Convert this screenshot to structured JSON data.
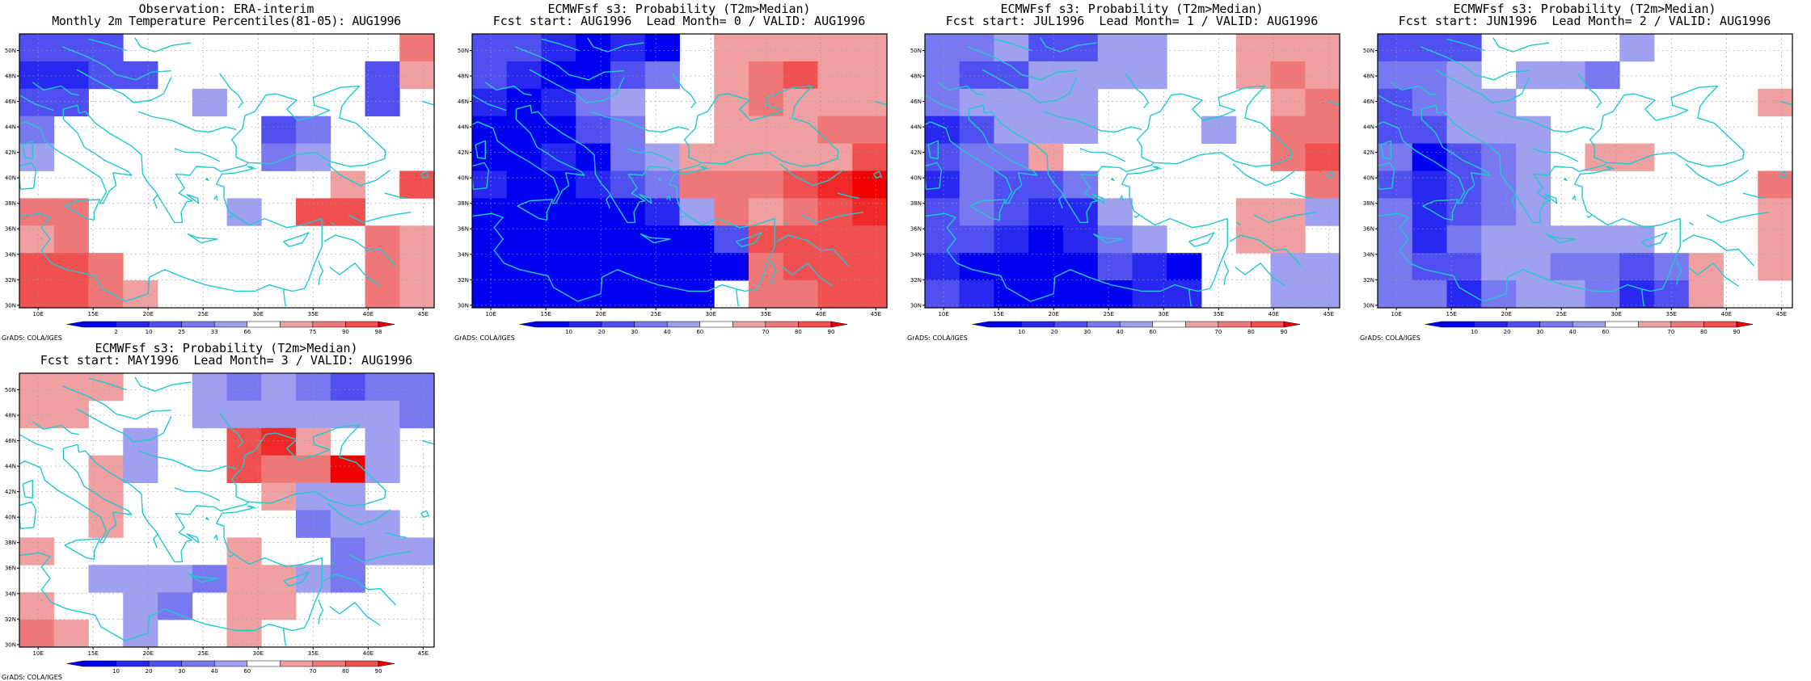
{
  "colors": {
    "coastline": "#22c8d0",
    "grid_line": "#9a9a9a",
    "frame": "#000000",
    "blue_ramp": [
      "#0000f0",
      "#2828f0",
      "#5050f0",
      "#7878f0",
      "#a0a0f0"
    ],
    "red_ramp": [
      "#f0a0a0",
      "#f07878",
      "#f05050",
      "#f02828",
      "#f00000"
    ]
  },
  "map": {
    "lon_ticks": [
      "10E",
      "15E",
      "20E",
      "25E",
      "30E",
      "35E",
      "40E",
      "45E"
    ],
    "lat_ticks": [
      "30N",
      "32N",
      "34N",
      "36N",
      "38N",
      "40N",
      "42N",
      "44N",
      "46N",
      "48N",
      "50N"
    ],
    "grid_columns": 12,
    "grid_rows": 10
  },
  "panels": [
    {
      "title_line1": "Observation: ERA-interim",
      "title_line2": "Monthly 2m Temperature Percentiles(81-05): AUG1996",
      "colorbar_labels": [
        "2",
        "10",
        "25",
        "33",
        "66",
        "75",
        "90",
        "98"
      ],
      "credit": "GrADS: COLA/IGES",
      "grid_levels": [
        [
          -3,
          -3,
          -3,
          0,
          0,
          0,
          0,
          0,
          0,
          0,
          0,
          2
        ],
        [
          -4,
          -4,
          -3,
          -3,
          0,
          0,
          0,
          0,
          0,
          0,
          -3,
          1
        ],
        [
          -3,
          -3,
          0,
          0,
          0,
          -1,
          0,
          0,
          0,
          0,
          -3,
          0
        ],
        [
          -2,
          0,
          0,
          0,
          0,
          0,
          0,
          -3,
          -2,
          0,
          0,
          0
        ],
        [
          -1,
          0,
          0,
          0,
          0,
          0,
          0,
          -2,
          -1,
          0,
          0,
          0
        ],
        [
          0,
          0,
          0,
          0,
          0,
          0,
          0,
          0,
          0,
          1,
          0,
          3
        ],
        [
          2,
          2,
          0,
          0,
          0,
          0,
          -1,
          0,
          3,
          3,
          0,
          0
        ],
        [
          1,
          2,
          0,
          0,
          0,
          0,
          0,
          0,
          0,
          0,
          2,
          1
        ],
        [
          3,
          3,
          2,
          0,
          0,
          0,
          0,
          0,
          0,
          0,
          2,
          1
        ],
        [
          3,
          3,
          2,
          1,
          0,
          0,
          0,
          0,
          0,
          0,
          2,
          1
        ]
      ]
    },
    {
      "title_line1": "ECMWFsf s3: Probability (T2m>Median)",
      "title_line2": "Fcst start: AUG1996  Lead Month= 0 / VALID: AUG1996",
      "colorbar_labels": [
        "10",
        "20",
        "30",
        "40",
        "60",
        "70",
        "80",
        "90"
      ],
      "credit": "GrADS: COLA/IGES",
      "grid_levels": [
        [
          -3,
          -3,
          -4,
          -5,
          -4,
          -5,
          0,
          1,
          1,
          1,
          1,
          1
        ],
        [
          -3,
          -4,
          -5,
          -5,
          -3,
          -2,
          0,
          1,
          2,
          3,
          1,
          1
        ],
        [
          -4,
          -5,
          -4,
          -2,
          -1,
          0,
          0,
          1,
          2,
          1,
          1,
          1
        ],
        [
          -5,
          -5,
          -5,
          -3,
          -2,
          0,
          0,
          1,
          1,
          1,
          2,
          2
        ],
        [
          -5,
          -5,
          -4,
          -5,
          -2,
          -1,
          1,
          1,
          1,
          1,
          1,
          3
        ],
        [
          -4,
          -5,
          -5,
          -4,
          -3,
          -2,
          2,
          2,
          2,
          3,
          4,
          5
        ],
        [
          -5,
          -5,
          -5,
          -5,
          -5,
          -4,
          -1,
          2,
          1,
          2,
          3,
          4
        ],
        [
          -5,
          -5,
          -5,
          -5,
          -5,
          -5,
          -5,
          -3,
          3,
          3,
          3,
          3
        ],
        [
          -5,
          -5,
          -5,
          -5,
          -5,
          -5,
          -5,
          -5,
          2,
          3,
          3,
          3
        ],
        [
          -5,
          -5,
          -5,
          -5,
          -5,
          -5,
          -5,
          0,
          2,
          2,
          3,
          3
        ]
      ]
    },
    {
      "title_line1": "ECMWFsf s3: Probability (T2m>Median)",
      "title_line2": "Fcst start: JUL1996  Lead Month= 1 / VALID: AUG1996",
      "colorbar_labels": [
        "10",
        "20",
        "30",
        "40",
        "60",
        "70",
        "80",
        "90"
      ],
      "credit": "GrADS: COLA/IGES",
      "grid_levels": [
        [
          -2,
          -2,
          -1,
          -3,
          -3,
          -1,
          -1,
          0,
          0,
          1,
          1,
          1
        ],
        [
          -2,
          -3,
          -3,
          -1,
          -1,
          -1,
          -1,
          0,
          0,
          1,
          2,
          1
        ],
        [
          -2,
          -1,
          -1,
          -1,
          -1,
          0,
          0,
          0,
          0,
          0,
          1,
          2
        ],
        [
          -4,
          -3,
          -1,
          -1,
          -1,
          0,
          0,
          0,
          -1,
          0,
          2,
          2
        ],
        [
          -3,
          -2,
          -2,
          1,
          0,
          0,
          0,
          0,
          0,
          0,
          2,
          3
        ],
        [
          -4,
          -2,
          -3,
          -3,
          -2,
          0,
          0,
          0,
          0,
          0,
          0,
          2
        ],
        [
          -3,
          -2,
          -3,
          -4,
          -4,
          -1,
          0,
          0,
          0,
          1,
          1,
          -1
        ],
        [
          -3,
          -3,
          -4,
          -5,
          -4,
          -2,
          -1,
          0,
          0,
          1,
          1,
          0
        ],
        [
          -4,
          -5,
          -5,
          -5,
          -5,
          -3,
          -4,
          -5,
          0,
          0,
          -1,
          -1
        ],
        [
          -3,
          -4,
          -5,
          -5,
          -5,
          -5,
          -4,
          -4,
          0,
          0,
          -1,
          -1
        ]
      ]
    },
    {
      "title_line1": "ECMWFsf s3: Probability (T2m>Median)",
      "title_line2": "Fcst start: JUN1996  Lead Month= 2 / VALID: AUG1996",
      "colorbar_labels": [
        "10",
        "20",
        "30",
        "40",
        "60",
        "70",
        "80",
        "90"
      ],
      "credit": "GrADS: COLA/IGES",
      "grid_levels": [
        [
          -3,
          -3,
          -3,
          0,
          0,
          0,
          0,
          -1,
          0,
          0,
          0,
          0
        ],
        [
          -2,
          -2,
          -1,
          0,
          -1,
          -1,
          -2,
          0,
          0,
          0,
          0,
          0
        ],
        [
          -3,
          -2,
          -1,
          -1,
          0,
          0,
          0,
          0,
          0,
          0,
          0,
          1
        ],
        [
          -3,
          -3,
          -1,
          -1,
          -1,
          0,
          0,
          0,
          0,
          0,
          0,
          0
        ],
        [
          -2,
          -5,
          -3,
          -2,
          -1,
          0,
          1,
          1,
          0,
          0,
          0,
          0
        ],
        [
          -3,
          -4,
          -3,
          -2,
          -1,
          0,
          0,
          0,
          0,
          0,
          0,
          2
        ],
        [
          -2,
          -4,
          -3,
          -2,
          -1,
          0,
          0,
          0,
          0,
          0,
          0,
          1
        ],
        [
          -2,
          -4,
          -2,
          -1,
          -1,
          -1,
          -1,
          -1,
          0,
          0,
          0,
          1
        ],
        [
          -2,
          -3,
          -3,
          -1,
          -1,
          -2,
          -2,
          -3,
          -2,
          1,
          0,
          1
        ],
        [
          -2,
          -2,
          -4,
          -2,
          -1,
          -1,
          -2,
          -4,
          -3,
          1,
          0,
          0
        ]
      ]
    },
    {
      "title_line1": "ECMWFsf s3: Probability (T2m>Median)",
      "title_line2": "Fcst start: MAY1996  Lead Month= 3 / VALID: AUG1996",
      "colorbar_labels": [
        "10",
        "20",
        "30",
        "40",
        "60",
        "70",
        "80",
        "90"
      ],
      "credit": "GrADS: COLA/IGES",
      "grid_levels": [
        [
          1,
          1,
          1,
          0,
          0,
          -1,
          -2,
          -1,
          -2,
          -3,
          -2,
          -2
        ],
        [
          1,
          1,
          0,
          0,
          0,
          -1,
          -1,
          -1,
          -1,
          -1,
          -1,
          -2
        ],
        [
          0,
          0,
          0,
          -1,
          0,
          0,
          3,
          4,
          1,
          0,
          -1,
          0
        ],
        [
          0,
          0,
          1,
          -1,
          0,
          0,
          3,
          2,
          2,
          5,
          -1,
          0
        ],
        [
          0,
          0,
          1,
          0,
          0,
          0,
          0,
          1,
          -1,
          -1,
          0,
          0
        ],
        [
          0,
          0,
          1,
          0,
          0,
          0,
          0,
          0,
          -2,
          -1,
          -1,
          0
        ],
        [
          1,
          0,
          0,
          0,
          0,
          0,
          1,
          0,
          0,
          -2,
          -1,
          -1
        ],
        [
          0,
          0,
          -1,
          -1,
          -1,
          -2,
          1,
          1,
          -1,
          -2,
          0,
          0
        ],
        [
          1,
          0,
          0,
          -1,
          -2,
          0,
          1,
          1,
          0,
          0,
          0,
          0
        ],
        [
          2,
          1,
          0,
          -1,
          0,
          0,
          1,
          0,
          0,
          0,
          0,
          0
        ]
      ]
    }
  ]
}
